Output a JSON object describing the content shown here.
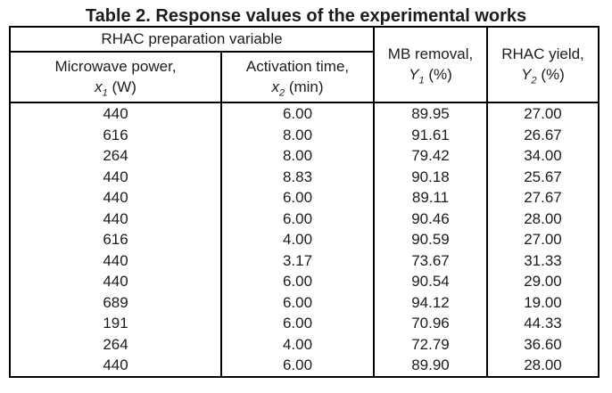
{
  "title": "Table 2. Response values of the experimental works",
  "colors": {
    "background": "#ffffff",
    "border": "#000000",
    "text": "#1c1c1c"
  },
  "table": {
    "group_header": "RHAC preparation variable",
    "columns": [
      {
        "line1": "Microwave power,",
        "var": "x",
        "sub": "1",
        "unit": "(W)"
      },
      {
        "line1": "Activation time,",
        "var": "x",
        "sub": "2",
        "unit": "(min)"
      },
      {
        "line1": "MB removal,",
        "var": "Y",
        "sub": "1",
        "unit": "(%)"
      },
      {
        "line1": "RHAC yield,",
        "var": "Y",
        "sub": "2",
        "unit": "(%)"
      }
    ],
    "rows": [
      [
        "440",
        "6.00",
        "89.95",
        "27.00"
      ],
      [
        "616",
        "8.00",
        "91.61",
        "26.67"
      ],
      [
        "264",
        "8.00",
        "79.42",
        "34.00"
      ],
      [
        "440",
        "8.83",
        "90.18",
        "25.67"
      ],
      [
        "440",
        "6.00",
        "89.11",
        "27.67"
      ],
      [
        "440",
        "6.00",
        "90.46",
        "28.00"
      ],
      [
        "616",
        "4.00",
        "90.59",
        "27.00"
      ],
      [
        "440",
        "3.17",
        "73.67",
        "31.33"
      ],
      [
        "440",
        "6.00",
        "90.54",
        "29.00"
      ],
      [
        "689",
        "6.00",
        "94.12",
        "19.00"
      ],
      [
        "191",
        "6.00",
        "70.96",
        "44.33"
      ],
      [
        "264",
        "4.00",
        "72.79",
        "36.60"
      ],
      [
        "440",
        "6.00",
        "89.90",
        "28.00"
      ]
    ]
  }
}
